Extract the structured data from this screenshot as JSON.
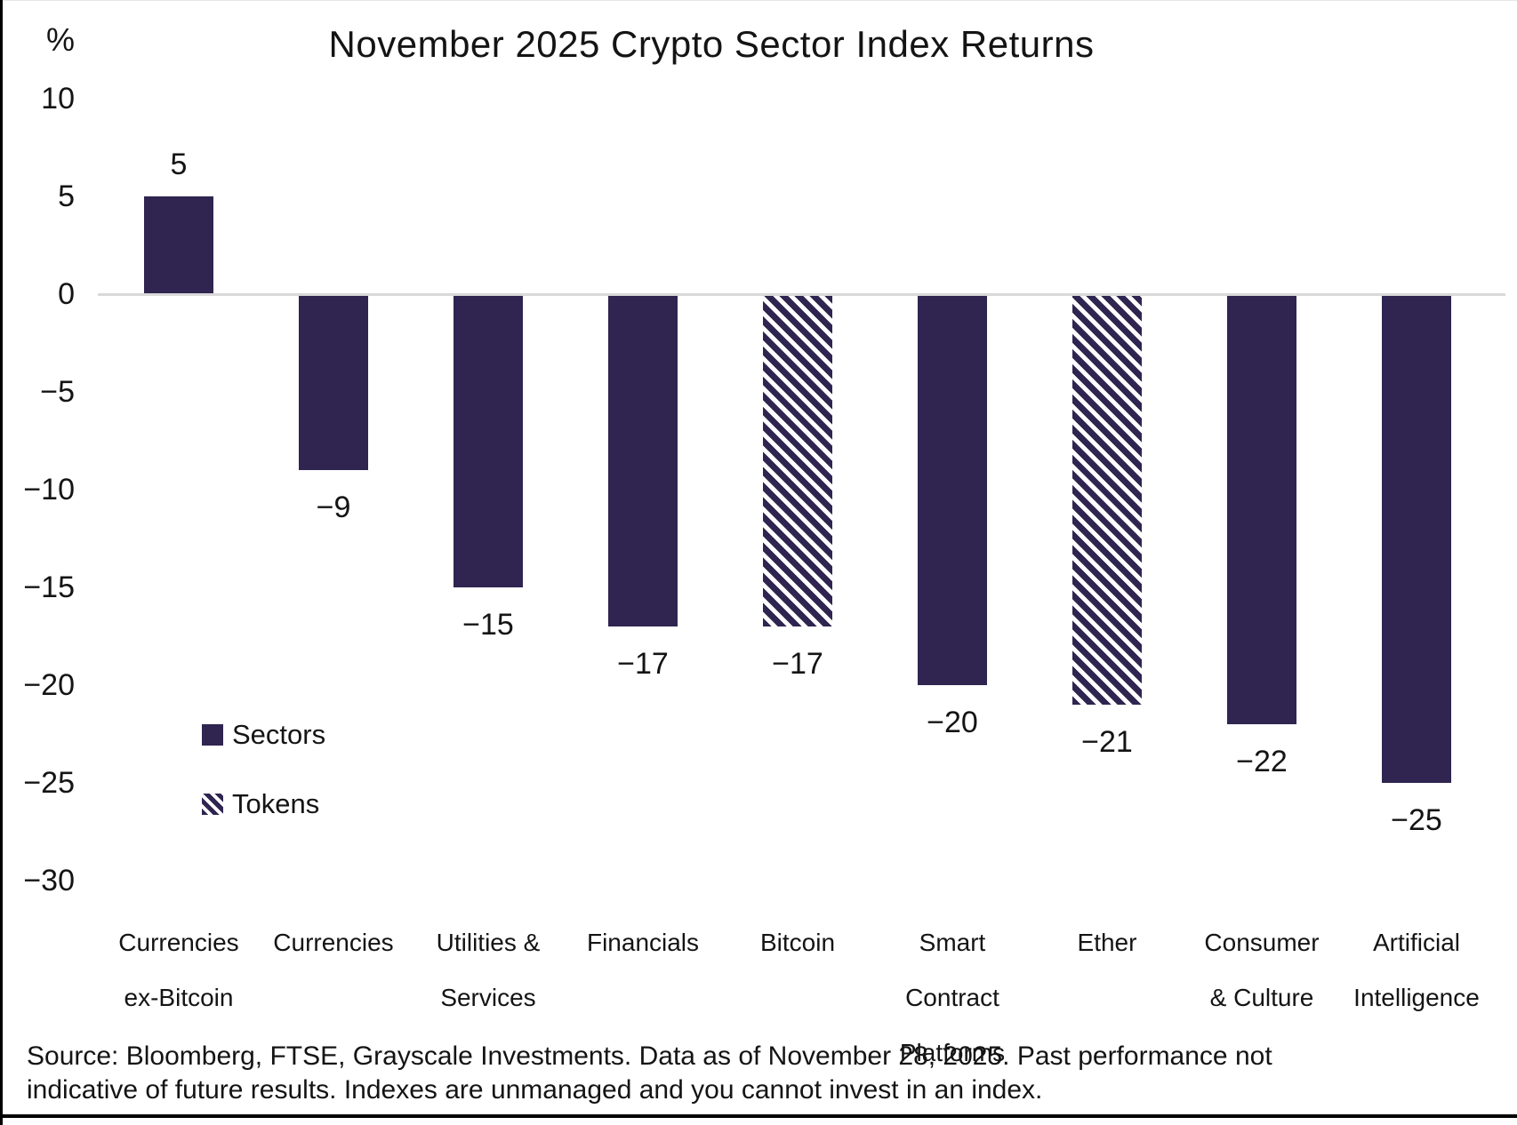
{
  "colors": {
    "bar_fill": "#2F2550",
    "zero_axis_line": "#D9D9D9",
    "text": "#141414",
    "border": "#000000"
  },
  "chart_data": {
    "type": "bar",
    "title": "November 2025 Crypto Sector Index Returns",
    "unit": "%",
    "xlabel": "",
    "ylabel": "%",
    "ylim": [
      -30,
      10
    ],
    "grid": false,
    "yticks": [
      {
        "value": 10,
        "label": "10"
      },
      {
        "value": 5,
        "label": "5"
      },
      {
        "value": 0,
        "label": "0"
      },
      {
        "value": -5,
        "label": "−5"
      },
      {
        "value": -10,
        "label": "−10"
      },
      {
        "value": -15,
        "label": "−15"
      },
      {
        "value": -20,
        "label": "−20"
      },
      {
        "value": -25,
        "label": "−25"
      },
      {
        "value": -30,
        "label": "−30"
      }
    ],
    "categories": [
      "Currencies ex-Bitcoin",
      "Currencies",
      "Utilities & Services",
      "Financials",
      "Bitcoin",
      "Smart Contract Platforms",
      "Ether",
      "Consumer & Culture",
      "Artificial Intelligence"
    ],
    "category_label_lines": [
      [
        "Currencies",
        "ex-Bitcoin"
      ],
      [
        "Currencies"
      ],
      [
        "Utilities &",
        "Services"
      ],
      [
        "Financials"
      ],
      [
        "Bitcoin"
      ],
      [
        "Smart",
        "Contract",
        "Platforms"
      ],
      [
        "Ether"
      ],
      [
        "Consumer",
        "& Culture"
      ],
      [
        "Artificial",
        "Intelligence"
      ]
    ],
    "values": [
      5,
      -9,
      -15,
      -17,
      -17,
      -20,
      -21,
      -22,
      -25
    ],
    "value_labels": [
      "5",
      "−9",
      "−15",
      "−17",
      "−17",
      "−20",
      "−21",
      "−22",
      "−25"
    ],
    "bar_styles": [
      "solid",
      "solid",
      "solid",
      "solid",
      "hatched",
      "solid",
      "hatched",
      "solid",
      "solid"
    ],
    "legend": [
      {
        "label": "Sectors",
        "style": "solid"
      },
      {
        "label": "Tokens",
        "style": "hatched"
      }
    ],
    "legend_position": "inside-left",
    "source_lines": [
      "Source: Bloomberg, FTSE, Grayscale Investments. Data as of November 28, 2025. Past performance not",
      "indicative of future results. Indexes are unmanaged and you cannot invest in an index."
    ]
  }
}
